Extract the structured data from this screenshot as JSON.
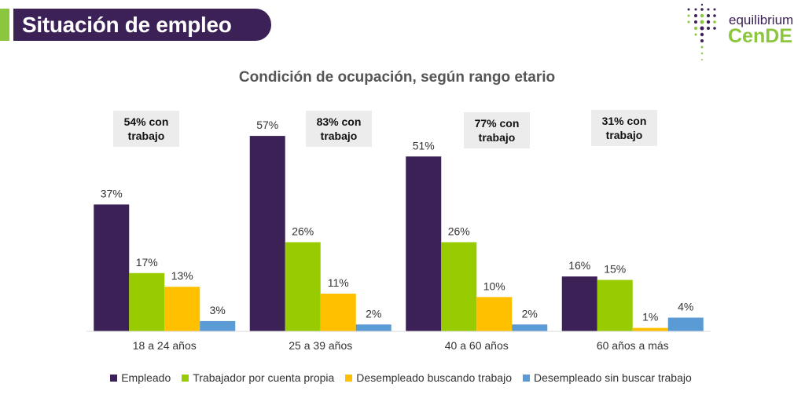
{
  "header": {
    "title": "Situación de empleo"
  },
  "logo": {
    "line1": "equilibrium",
    "line2": "CenDE"
  },
  "callouts": [
    {
      "text": "54% con trabajo"
    },
    {
      "text": "83% con trabajo"
    },
    {
      "text": "77% con trabajo"
    },
    {
      "text": "31% con trabajo"
    }
  ],
  "chart_data": {
    "type": "bar",
    "title": "Condición de ocupación, según rango etario",
    "categories": [
      "18 a 24 años",
      "25 a 39 años",
      "40 a 60 años",
      "60 años a más"
    ],
    "series": [
      {
        "name": "Empleado",
        "color": "#3c2156",
        "values": [
          37,
          57,
          51,
          16
        ]
      },
      {
        "name": "Trabajador por cuenta propia",
        "color": "#99cc00",
        "values": [
          17,
          26,
          26,
          15
        ]
      },
      {
        "name": "Desempleado buscando trabajo",
        "color": "#ffc000",
        "values": [
          13,
          11,
          10,
          1
        ]
      },
      {
        "name": "Desempleado sin buscar trabajo",
        "color": "#5b9bd5",
        "values": [
          3,
          2,
          2,
          4
        ]
      }
    ],
    "value_suffix": "%",
    "ylim": [
      0,
      60
    ],
    "xlabel": "",
    "ylabel": "",
    "legend": "bottom",
    "grid": false
  }
}
